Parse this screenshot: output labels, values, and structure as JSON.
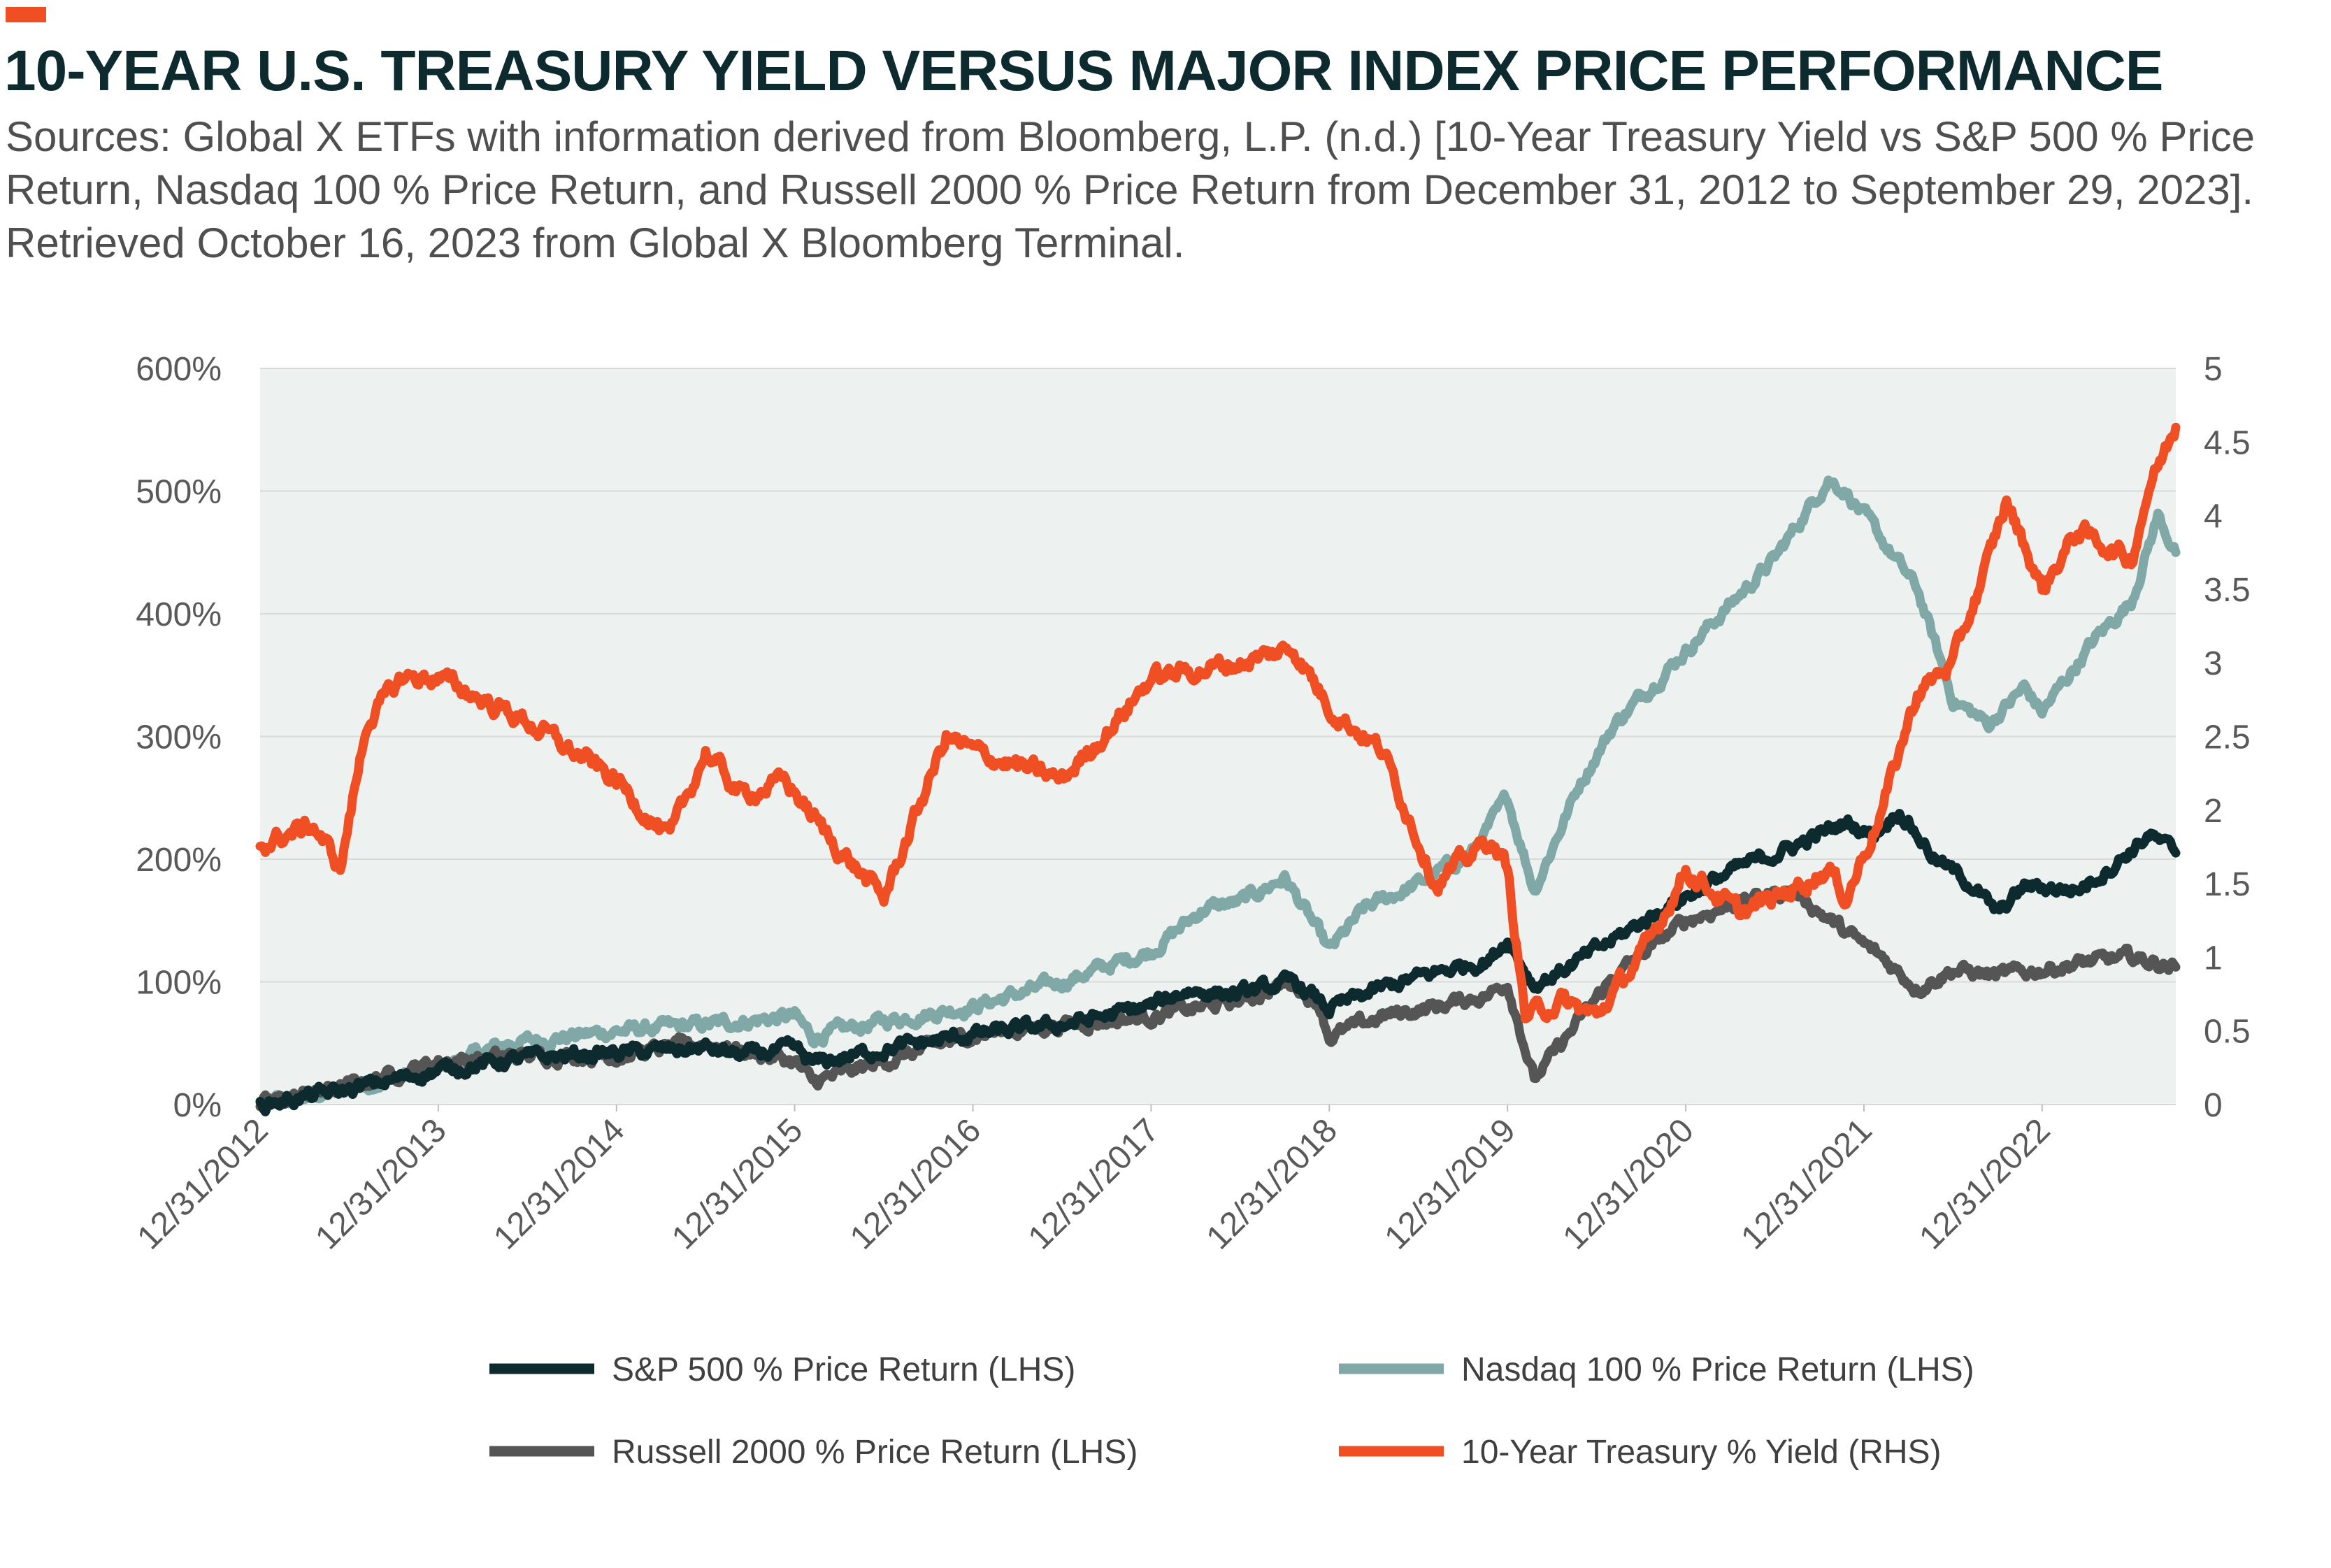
{
  "header": {
    "title": "10-YEAR U.S. TREASURY YIELD VERSUS MAJOR INDEX PRICE PERFORMANCE",
    "subtitle": "Sources: Global X ETFs with information derived from Bloomberg, L.P. (n.d.) [10-Year Treasury Yield vs S&P 500 % Price Return, Nasdaq 100 % Price Return, and Russell 2000 % Price Return from December 31, 2012 to September 29, 2023]. Retrieved October 16, 2023 from Global X Bloomberg Terminal."
  },
  "colors": {
    "accent": "#f04e23",
    "plot_background": "#edf2f1",
    "sp500": "#0d2b2e",
    "nasdaq100": "#7fa8a6",
    "russell2000": "#555555",
    "treasury": "#f04e23"
  },
  "chart_data": {
    "type": "line",
    "x_tick_labels": [
      "12/31/2012",
      "12/31/2013",
      "12/31/2014",
      "12/31/2015",
      "12/31/2016",
      "12/31/2017",
      "12/31/2018",
      "12/31/2019",
      "12/31/2020",
      "12/31/2021",
      "12/31/2022"
    ],
    "x_range": [
      2012.0,
      2022.75
    ],
    "left_axis": {
      "ylim": [
        0,
        600
      ],
      "ticks": [
        "0%",
        "100%",
        "200%",
        "300%",
        "400%",
        "500%",
        "600%"
      ]
    },
    "right_axis": {
      "ylim": [
        0,
        5
      ],
      "ticks": [
        "0",
        "0.5",
        "1",
        "1.5",
        "2",
        "2.5",
        "3",
        "3.5",
        "4",
        "4.5",
        "5"
      ]
    },
    "grid": "horizontal",
    "legend_placement": "bottom",
    "series": [
      {
        "name": "S&P 500 % Price Return (LHS)",
        "axis": "left",
        "color_key": "sp500",
        "points": [
          [
            2012.0,
            0
          ],
          [
            2012.5,
            12
          ],
          [
            2013.0,
            28
          ],
          [
            2013.5,
            38
          ],
          [
            2014.0,
            42
          ],
          [
            2014.5,
            46
          ],
          [
            2014.7,
            40
          ],
          [
            2015.0,
            45
          ],
          [
            2015.1,
            33
          ],
          [
            2015.5,
            45
          ],
          [
            2016.0,
            57
          ],
          [
            2016.5,
            65
          ],
          [
            2017.0,
            80
          ],
          [
            2017.2,
            93
          ],
          [
            2017.5,
            90
          ],
          [
            2017.8,
            100
          ],
          [
            2018.0,
            78
          ],
          [
            2018.3,
            95
          ],
          [
            2018.6,
            108
          ],
          [
            2018.9,
            118
          ],
          [
            2019.0,
            135
          ],
          [
            2019.15,
            97
          ],
          [
            2019.4,
            117
          ],
          [
            2019.6,
            135
          ],
          [
            2020.0,
            170
          ],
          [
            2020.3,
            193
          ],
          [
            2020.6,
            210
          ],
          [
            2020.9,
            230
          ],
          [
            2021.05,
            220
          ],
          [
            2021.2,
            240
          ],
          [
            2021.4,
            200
          ],
          [
            2021.6,
            180
          ],
          [
            2021.75,
            155
          ],
          [
            2021.9,
            178
          ],
          [
            2022.2,
            175
          ],
          [
            2022.4,
            195
          ],
          [
            2022.6,
            220
          ],
          [
            2022.75,
            205
          ]
        ]
      },
      {
        "name": "Nasdaq 100 % Price Return (LHS)",
        "axis": "left",
        "color_key": "nasdaq100",
        "points": [
          [
            2012.0,
            0
          ],
          [
            2012.4,
            10
          ],
          [
            2013.0,
            30
          ],
          [
            2013.4,
            50
          ],
          [
            2014.0,
            60
          ],
          [
            2014.5,
            65
          ],
          [
            2015.0,
            72
          ],
          [
            2015.1,
            55
          ],
          [
            2015.5,
            68
          ],
          [
            2016.0,
            80
          ],
          [
            2016.5,
            100
          ],
          [
            2017.0,
            125
          ],
          [
            2017.3,
            160
          ],
          [
            2017.5,
            165
          ],
          [
            2017.75,
            185
          ],
          [
            2017.9,
            150
          ],
          [
            2018.0,
            125
          ],
          [
            2018.2,
            160
          ],
          [
            2018.5,
            180
          ],
          [
            2018.8,
            205
          ],
          [
            2019.0,
            250
          ],
          [
            2019.15,
            175
          ],
          [
            2019.4,
            260
          ],
          [
            2019.6,
            310
          ],
          [
            2020.0,
            370
          ],
          [
            2020.2,
            400
          ],
          [
            2020.5,
            445
          ],
          [
            2020.8,
            510
          ],
          [
            2020.9,
            500
          ],
          [
            2021.1,
            460
          ],
          [
            2021.3,
            420
          ],
          [
            2021.5,
            330
          ],
          [
            2021.7,
            310
          ],
          [
            2021.9,
            340
          ],
          [
            2022.0,
            320
          ],
          [
            2022.3,
            380
          ],
          [
            2022.5,
            410
          ],
          [
            2022.65,
            480
          ],
          [
            2022.75,
            450
          ]
        ]
      },
      {
        "name": "Russell 2000 % Price Return (LHS)",
        "axis": "left",
        "color_key": "russell2000",
        "points": [
          [
            2012.0,
            0
          ],
          [
            2012.5,
            15
          ],
          [
            2013.0,
            35
          ],
          [
            2013.5,
            40
          ],
          [
            2014.0,
            40
          ],
          [
            2014.5,
            50
          ],
          [
            2015.0,
            35
          ],
          [
            2015.1,
            18
          ],
          [
            2015.5,
            35
          ],
          [
            2016.0,
            57
          ],
          [
            2016.5,
            65
          ],
          [
            2017.0,
            72
          ],
          [
            2017.5,
            85
          ],
          [
            2017.8,
            100
          ],
          [
            2017.95,
            80
          ],
          [
            2018.0,
            55
          ],
          [
            2018.3,
            72
          ],
          [
            2018.6,
            80
          ],
          [
            2018.9,
            90
          ],
          [
            2019.0,
            100
          ],
          [
            2019.15,
            20
          ],
          [
            2019.4,
            68
          ],
          [
            2019.6,
            105
          ],
          [
            2020.0,
            150
          ],
          [
            2020.3,
            165
          ],
          [
            2020.6,
            175
          ],
          [
            2020.9,
            140
          ],
          [
            2021.1,
            120
          ],
          [
            2021.3,
            95
          ],
          [
            2021.5,
            110
          ],
          [
            2021.75,
            105
          ],
          [
            2022.0,
            110
          ],
          [
            2022.2,
            115
          ],
          [
            2022.5,
            120
          ],
          [
            2022.75,
            112
          ]
        ]
      },
      {
        "name": "10-Year Treasury % Yield (RHS)",
        "axis": "right",
        "color_key": "treasury",
        "points": [
          [
            2012.0,
            1.76
          ],
          [
            2012.3,
            1.9
          ],
          [
            2012.45,
            1.6
          ],
          [
            2012.6,
            2.6
          ],
          [
            2012.8,
            2.9
          ],
          [
            2013.0,
            2.9
          ],
          [
            2013.5,
            2.6
          ],
          [
            2014.0,
            2.2
          ],
          [
            2014.3,
            1.8
          ],
          [
            2014.5,
            2.4
          ],
          [
            2014.7,
            2.1
          ],
          [
            2014.95,
            2.2
          ],
          [
            2015.2,
            1.8
          ],
          [
            2015.5,
            1.4
          ],
          [
            2015.85,
            2.5
          ],
          [
            2016.0,
            2.4
          ],
          [
            2016.5,
            2.2
          ],
          [
            2016.8,
            2.6
          ],
          [
            2017.0,
            2.9
          ],
          [
            2017.5,
            3.0
          ],
          [
            2017.8,
            3.1
          ],
          [
            2018.0,
            2.7
          ],
          [
            2018.3,
            2.4
          ],
          [
            2018.6,
            1.5
          ],
          [
            2018.9,
            1.8
          ],
          [
            2019.0,
            1.6
          ],
          [
            2019.1,
            0.6
          ],
          [
            2019.3,
            0.7
          ],
          [
            2019.5,
            0.6
          ],
          [
            2019.8,
            1.1
          ],
          [
            2020.0,
            1.6
          ],
          [
            2020.3,
            1.3
          ],
          [
            2020.5,
            1.4
          ],
          [
            2020.8,
            1.6
          ],
          [
            2020.9,
            1.4
          ],
          [
            2021.0,
            1.7
          ],
          [
            2021.1,
            2.0
          ],
          [
            2021.3,
            2.8
          ],
          [
            2021.5,
            3.0
          ],
          [
            2021.7,
            3.7
          ],
          [
            2021.8,
            4.1
          ],
          [
            2022.0,
            3.5
          ],
          [
            2022.2,
            3.9
          ],
          [
            2022.5,
            3.7
          ],
          [
            2022.6,
            4.2
          ],
          [
            2022.75,
            4.6
          ]
        ]
      }
    ]
  }
}
